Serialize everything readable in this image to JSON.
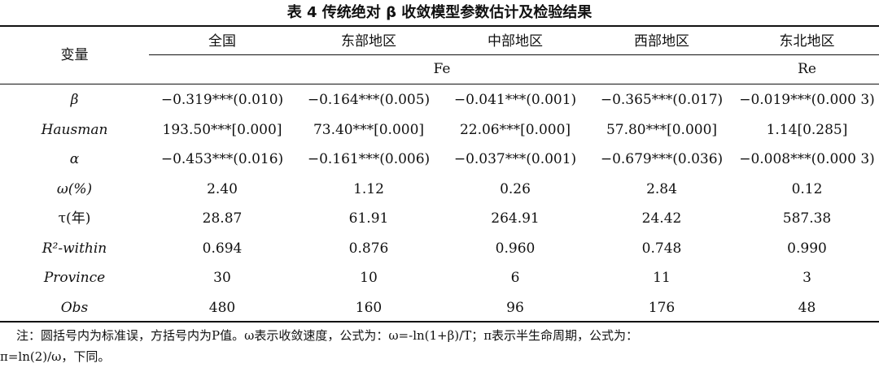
{
  "title": "表 4   传统绝对 β 收敛模型参数估计及检验结果",
  "header": {
    "variable_label": "变量",
    "regions": [
      "全国",
      "东部地区",
      "中部地区",
      "西部地区",
      "东北地区"
    ],
    "model_fe": "Fe",
    "model_re": "Re"
  },
  "rows": [
    {
      "name": "β",
      "italic": true,
      "values": [
        "−0.319***(0.010)",
        "−0.164***(0.005)",
        "−0.041***(0.001)",
        "−0.365***(0.017)",
        "−0.019***(0.000 3)"
      ]
    },
    {
      "name": "Hausman",
      "italic": true,
      "values": [
        "193.50***[0.000]",
        "73.40***[0.000]",
        "22.06***[0.000]",
        "57.80***[0.000]",
        "1.14[0.285]"
      ]
    },
    {
      "name": "α",
      "italic": true,
      "values": [
        "−0.453***(0.016)",
        "−0.161***(0.006)",
        "−0.037***(0.001)",
        "−0.679***(0.036)",
        "−0.008***(0.000 3)"
      ]
    },
    {
      "name": "ω(%)",
      "italic": true,
      "values": [
        "2.40",
        "1.12",
        "0.26",
        "2.84",
        "0.12"
      ]
    },
    {
      "name": "τ(年)",
      "italic": false,
      "values": [
        "28.87",
        "61.91",
        "264.91",
        "24.42",
        "587.38"
      ]
    },
    {
      "name": "R²-within",
      "italic": true,
      "values": [
        "0.694",
        "0.876",
        "0.960",
        "0.748",
        "0.990"
      ]
    },
    {
      "name": "Province",
      "italic": true,
      "values": [
        "30",
        "10",
        "6",
        "11",
        "3"
      ]
    },
    {
      "name": "Obs",
      "italic": true,
      "values": [
        "480",
        "160",
        "96",
        "176",
        "48"
      ]
    }
  ],
  "note": {
    "line1": "注：圆括号内为标准误，方括号内为P值。ω表示收敛速度，公式为：ω=-ln(1+β)/T；π表示半生命周期，公式为：",
    "line2": "π=ln(2)/ω，下同。"
  }
}
